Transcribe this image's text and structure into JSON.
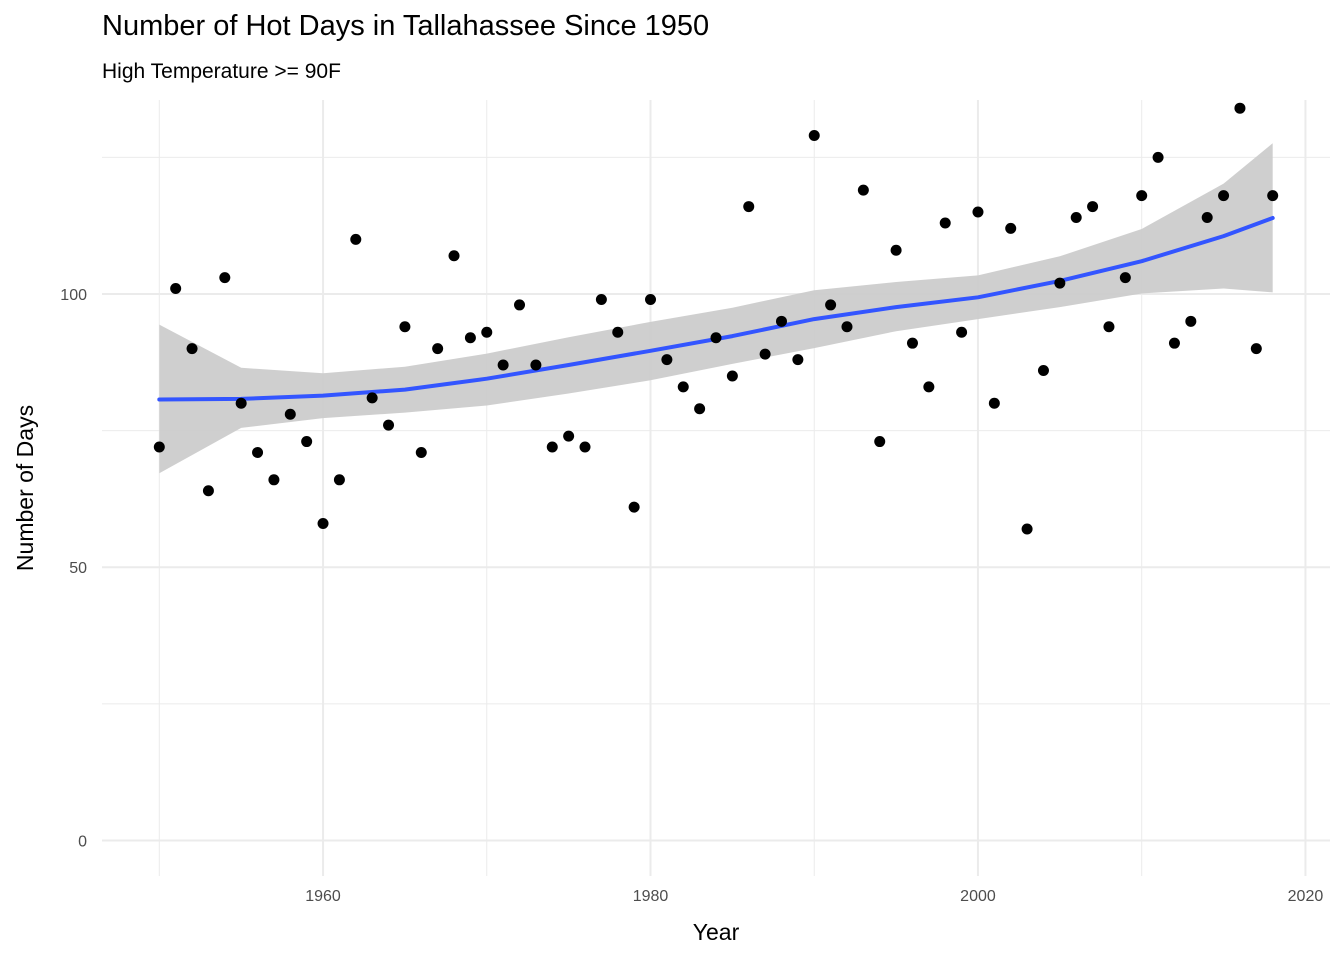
{
  "chart_data": {
    "type": "scatter",
    "title": "Number of Hot Days in Tallahassee Since 1950",
    "subtitle": "High Temperature >= 90F",
    "xlabel": "Year",
    "ylabel": "Number of Days",
    "xlim": [
      1946.5,
      2021.5
    ],
    "ylim": [
      -6.5,
      135.5
    ],
    "x_major_ticks": [
      1960,
      1980,
      2000,
      2020
    ],
    "x_minor_ticks": [
      1950,
      1970,
      1990,
      2010
    ],
    "y_major_ticks": [
      0,
      50,
      100
    ],
    "y_minor_ticks": [
      25,
      75,
      125
    ],
    "x_tick_labels": [
      "1960",
      "1980",
      "2000",
      "2020"
    ],
    "y_tick_labels": [
      "0",
      "50",
      "100"
    ],
    "grid": true,
    "colors": {
      "points": "#000000",
      "smooth": "#3355ff",
      "band": "#cccccc",
      "grid": "#ebebeb"
    },
    "series": [
      {
        "type": "scatter",
        "x": [
          1950,
          1951,
          1952,
          1953,
          1954,
          1955,
          1956,
          1957,
          1958,
          1959,
          1960,
          1961,
          1962,
          1963,
          1964,
          1965,
          1966,
          1967,
          1968,
          1969,
          1970,
          1971,
          1972,
          1973,
          1974,
          1975,
          1976,
          1977,
          1978,
          1979,
          1980,
          1981,
          1982,
          1983,
          1984,
          1985,
          1986,
          1987,
          1988,
          1989,
          1990,
          1991,
          1992,
          1993,
          1994,
          1995,
          1996,
          1997,
          1998,
          1999,
          2000,
          2001,
          2002,
          2003,
          2004,
          2005,
          2006,
          2007,
          2008,
          2009,
          2010,
          2011,
          2012,
          2013,
          2014,
          2015,
          2016,
          2017,
          2018
        ],
        "y": [
          72,
          101,
          90,
          64,
          103,
          80,
          71,
          66,
          78,
          73,
          58,
          66,
          110,
          81,
          76,
          94,
          71,
          90,
          107,
          92,
          93,
          87,
          98,
          87,
          72,
          74,
          72,
          99,
          93,
          61,
          99,
          88,
          83,
          79,
          92,
          85,
          116,
          89,
          95,
          88,
          129,
          98,
          94,
          119,
          73,
          108,
          91,
          83,
          113,
          93,
          115,
          80,
          112,
          57,
          86,
          102,
          114,
          116,
          94,
          103,
          118,
          125,
          91,
          95,
          114,
          118,
          134,
          90,
          118
        ]
      },
      {
        "type": "line",
        "x": [
          1950,
          1955,
          1960,
          1965,
          1970,
          1975,
          1980,
          1985,
          1990,
          1995,
          2000,
          2005,
          2010,
          2015,
          2018
        ],
        "y": [
          80.7,
          80.8,
          81.4,
          82.5,
          84.5,
          87.0,
          89.6,
          92.3,
          95.4,
          97.6,
          99.4,
          102.4,
          106.0,
          110.6,
          113.9
        ],
        "lower": [
          67.2,
          75.5,
          77.3,
          78.3,
          79.6,
          81.8,
          84.2,
          87.2,
          90.1,
          93.2,
          95.4,
          97.6,
          100.1,
          101.0,
          100.3
        ],
        "upper": [
          94.4,
          86.5,
          85.5,
          86.7,
          89.1,
          92.1,
          94.9,
          97.5,
          100.7,
          102.2,
          103.4,
          106.9,
          111.9,
          120.2,
          127.6
        ]
      }
    ]
  }
}
